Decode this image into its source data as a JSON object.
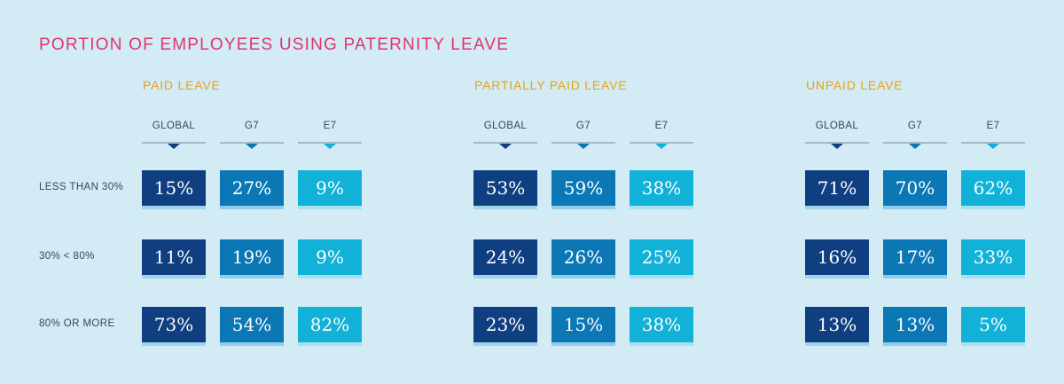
{
  "title": "PORTION OF EMPLOYEES USING PATERNITY LEAVE",
  "colors": {
    "title": "#e0356d",
    "group_title": "#e8a21b",
    "background": "#d2ebf4",
    "GLOBAL": "#0f3f80",
    "G7": "#0b77b5",
    "E7": "#12b1d8"
  },
  "chart_data": {
    "type": "table",
    "title": "PORTION OF EMPLOYEES USING PATERNITY LEAVE",
    "groups": [
      "PAID LEAVE",
      "PARTIALLY PAID LEAVE",
      "UNPAID LEAVE"
    ],
    "columns": [
      "GLOBAL",
      "G7",
      "E7"
    ],
    "rows": [
      "LESS THAN 30%",
      "30% < 80%",
      "80% OR MORE"
    ],
    "values": [
      [
        [
          "15%",
          "27%",
          "9%"
        ],
        [
          "53%",
          "59%",
          "38%"
        ],
        [
          "71%",
          "70%",
          "62%"
        ]
      ],
      [
        [
          "11%",
          "19%",
          "9%"
        ],
        [
          "24%",
          "26%",
          "25%"
        ],
        [
          "16%",
          "17%",
          "33%"
        ]
      ],
      [
        [
          "73%",
          "54%",
          "82%"
        ],
        [
          "23%",
          "15%",
          "38%"
        ],
        [
          "13%",
          "13%",
          "5%"
        ]
      ]
    ]
  }
}
